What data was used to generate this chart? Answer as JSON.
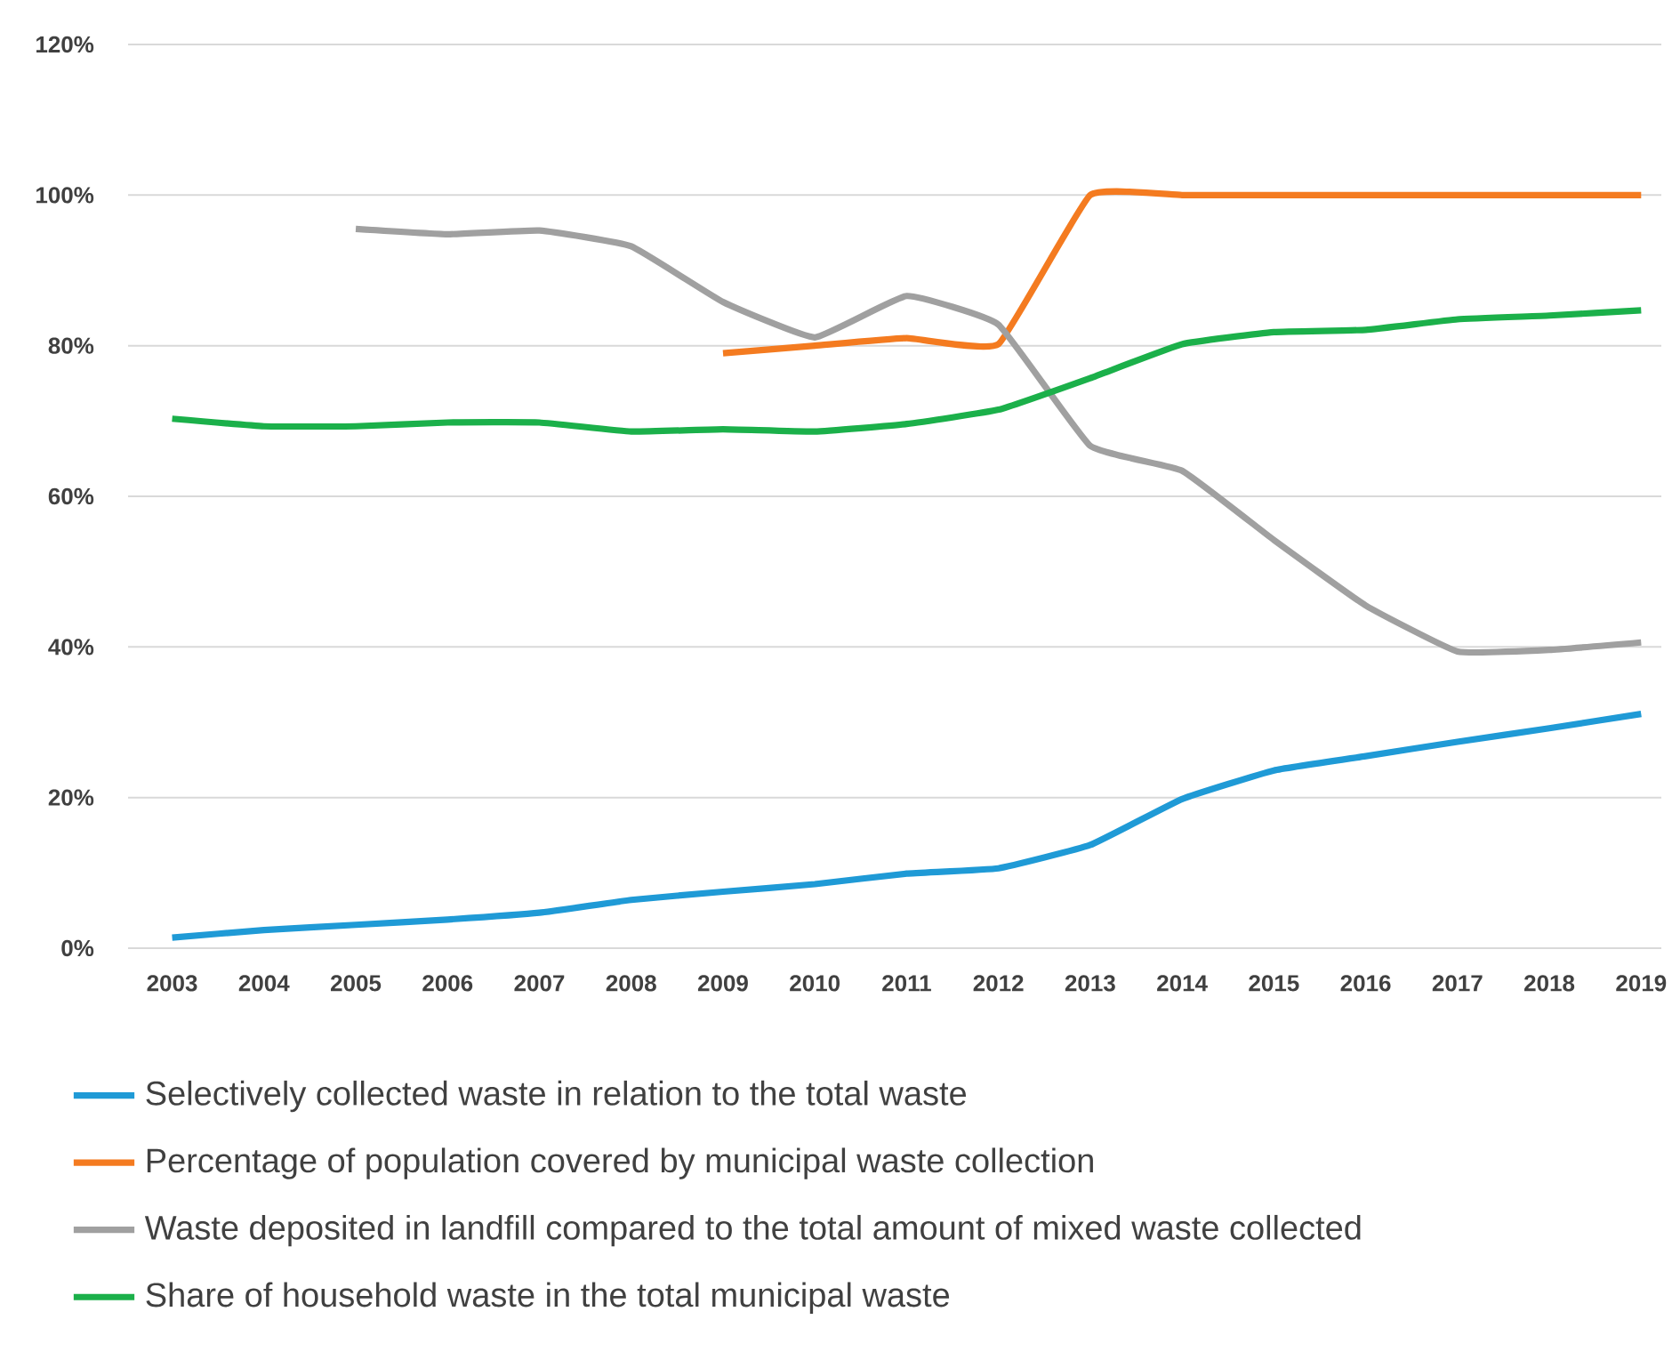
{
  "chart_data": {
    "type": "line",
    "categories": [
      "2003",
      "2004",
      "2005",
      "2006",
      "2007",
      "2008",
      "2009",
      "2010",
      "2011",
      "2012",
      "2013",
      "2014",
      "2015",
      "2016",
      "2017",
      "2018",
      "2019"
    ],
    "series": [
      {
        "name": "Selectively collected waste in relation to the total waste",
        "color": "#1f9ad6",
        "values": [
          1.4,
          2.4,
          3.1,
          3.8,
          4.7,
          6.4,
          7.5,
          8.5,
          9.9,
          10.6,
          13.7,
          19.8,
          23.6,
          25.5,
          27.4,
          29.2,
          31.1
        ]
      },
      {
        "name": "Percentage of population covered by municipal waste collection",
        "color": "#f47b20",
        "values": [
          null,
          null,
          null,
          null,
          null,
          null,
          79,
          80,
          81,
          80.2,
          100,
          100,
          100,
          100,
          100,
          100,
          100
        ]
      },
      {
        "name": "Waste deposited in landfill compared to the total amount of mixed waste collected",
        "color": "#a0a0a0",
        "values": [
          null,
          null,
          95.5,
          94.8,
          95.3,
          93.2,
          85.8,
          81.1,
          86.6,
          82.8,
          66.7,
          63.4,
          54.2,
          45.5,
          39.4,
          39.6,
          40.6
        ]
      },
      {
        "name": "Share of household waste in the total municipal waste",
        "color": "#1bb04a",
        "values": [
          70.3,
          69.3,
          69.3,
          69.8,
          69.8,
          68.6,
          68.9,
          68.6,
          69.6,
          71.5,
          75.7,
          80.2,
          81.8,
          82.1,
          83.5,
          84,
          84.7
        ]
      }
    ],
    "ylim": [
      0,
      120
    ],
    "yticks": [
      {
        "value": 0,
        "label": "0%"
      },
      {
        "value": 20,
        "label": "20%"
      },
      {
        "value": 40,
        "label": "40%"
      },
      {
        "value": 60,
        "label": "60%"
      },
      {
        "value": 80,
        "label": "80%"
      },
      {
        "value": 100,
        "label": "100%"
      },
      {
        "value": 120,
        "label": "120%"
      }
    ],
    "grid": "y",
    "legend": "bottom",
    "line_style": "solid",
    "marker": "none"
  }
}
